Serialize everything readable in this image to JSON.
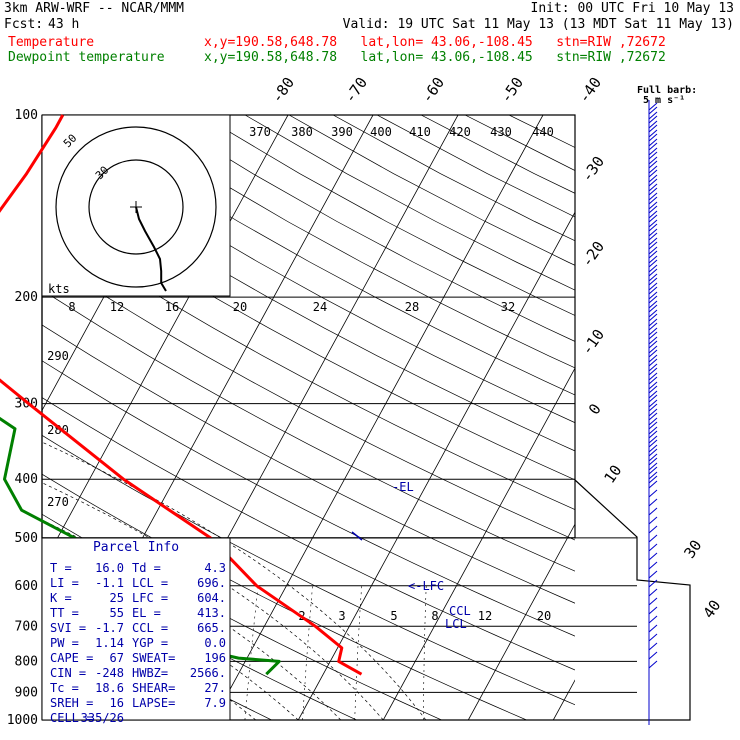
{
  "header": {
    "model": "3km ARW-WRF -- NCAR/MMM",
    "init": "Init: 00 UTC Fri 10 May 13",
    "fcst_label": "Fcst:",
    "fcst_hours": "43 h",
    "valid": "Valid: 19 UTC Sat 11 May 13 (13 MDT Sat 11 May 13)",
    "temperature_label": "Temperature",
    "dewpoint_label": "Dewpoint temperature",
    "location_info": "x,y=190.58,648.78   lat,lon= 43.06,-108.45   stn=RIW ,72672"
  },
  "colors": {
    "temperature": "#ff0000",
    "dewpoint": "#008000",
    "barbs": "#0000cc",
    "parcel_text": "#0000aa"
  },
  "chart_data": {
    "type": "line",
    "subtype": "skew-T log-P diagram",
    "yscale": "log-pressure",
    "ylim": [
      1000,
      100
    ],
    "pressure_ticks": [
      "100",
      "200",
      "300",
      "400",
      "500",
      "600",
      "700",
      "800",
      "900",
      "1000"
    ],
    "isotherm_labels": [
      "-80",
      "-70",
      "-60",
      "-50",
      "-40",
      "-30",
      "-20",
      "-10",
      "0",
      "10",
      "30",
      "40"
    ],
    "theta_labels": [
      "370",
      "380",
      "390",
      "400",
      "410",
      "420",
      "430",
      "440",
      "290",
      "280",
      "270"
    ],
    "mixing_ratio_labels": [
      "2",
      "3",
      "5",
      "8",
      "12",
      "20"
    ],
    "hodograph_labels": [
      "8",
      "12",
      "16",
      "20",
      "24",
      "28",
      "32"
    ],
    "hodograph_rings": [
      "50",
      "30"
    ],
    "kts_label": "kts",
    "barb_key": [
      "Full barb:",
      "5 m s⁻¹"
    ],
    "series": [
      {
        "name": "Temperature",
        "points": [
          [
            840,
            14.5
          ],
          [
            800,
            11.0
          ],
          [
            760,
            10.5
          ],
          [
            700,
            6.0
          ],
          [
            600,
            -3.5
          ],
          [
            500,
            -12.0
          ],
          [
            400,
            -26.0
          ],
          [
            300,
            -42.0
          ],
          [
            250,
            -52.0
          ],
          [
            200,
            -60.0
          ],
          [
            175,
            -59.0
          ],
          [
            150,
            -58.0
          ],
          [
            125,
            -57.0
          ],
          [
            105,
            -56.5
          ],
          [
            100,
            -56.5
          ]
        ]
      },
      {
        "name": "Dewpoint temperature",
        "points": [
          [
            840,
            3.3
          ],
          [
            800,
            4.0
          ],
          [
            790,
            -1.0
          ],
          [
            760,
            -7.0
          ],
          [
            700,
            -10.0
          ],
          [
            650,
            -11.0
          ],
          [
            600,
            -14.0
          ],
          [
            550,
            -20.0
          ],
          [
            500,
            -28.0
          ],
          [
            450,
            -36.0
          ],
          [
            400,
            -40.0
          ],
          [
            330,
            -42.0
          ],
          [
            300,
            -48.0
          ],
          [
            250,
            -58.0
          ],
          [
            200,
            -68.0
          ],
          [
            150,
            -74.0
          ],
          [
            120,
            -78.0
          ],
          [
            100,
            -81.0
          ]
        ]
      }
    ],
    "annotations": [
      "-EL",
      "<-LFC",
      "CCL",
      "LCL"
    ],
    "hodograph": [
      [
        0,
        0
      ],
      [
        0.5,
        -1.5
      ],
      [
        1.5,
        -3
      ],
      [
        3,
        -5
      ],
      [
        4,
        -6.5
      ],
      [
        4.2,
        -8
      ],
      [
        4.2,
        -9.5
      ],
      [
        5,
        -10.5
      ]
    ]
  },
  "parcel_info": {
    "title": "Parcel Info",
    "rows": [
      [
        "T  =",
        "16.0",
        "Td =",
        "4.3"
      ],
      [
        "LI =",
        "-1.1",
        "LCL =",
        "696."
      ],
      [
        "K  =",
        "25",
        "LFC =",
        "604."
      ],
      [
        "TT =",
        "55",
        "EL =",
        "413."
      ],
      [
        "SVI =",
        "-1.7",
        "CCL =",
        "665."
      ],
      [
        "PW =",
        "1.14",
        "YGP =",
        "0.0"
      ],
      [
        "CAPE =",
        "67",
        "SWEAT=",
        "196"
      ],
      [
        "CIN =",
        "-248",
        "HWBZ=",
        "2566."
      ],
      [
        "Tc =",
        "18.6",
        "SHEAR=",
        "27."
      ],
      [
        "SREH =",
        "16",
        "LAPSE=",
        "7.9"
      ],
      [
        "CELL =",
        "335/26",
        "",
        ""
      ]
    ]
  }
}
